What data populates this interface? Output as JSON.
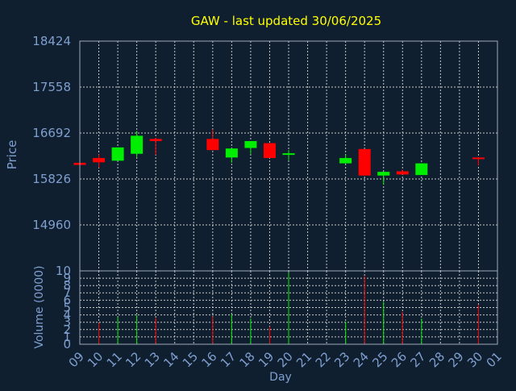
{
  "chart_data": [
    {
      "type": "candlestick",
      "title": "GAW - last updated 30/06/2025",
      "ylabel": "Price",
      "xlabel": "",
      "ylim": [
        14093,
        18424
      ],
      "yticks": [
        14960,
        15826,
        16692,
        17558,
        18424
      ],
      "grid": true,
      "x_ticks": [
        "09",
        "10",
        "11",
        "12",
        "13",
        "14",
        "15",
        "16",
        "17",
        "18",
        "19",
        "20",
        "21",
        "22",
        "23",
        "24",
        "25",
        "26",
        "27",
        "28",
        "29",
        "30",
        "01"
      ],
      "candles": [
        {
          "day": "09",
          "open": 16130,
          "close": 16090,
          "high": 16140,
          "low": 16080
        },
        {
          "day": "10",
          "open": 16220,
          "close": 16140,
          "high": 16290,
          "low": 16040
        },
        {
          "day": "11",
          "open": 16170,
          "close": 16420,
          "high": 16420,
          "low": 16170
        },
        {
          "day": "12",
          "open": 16300,
          "close": 16640,
          "high": 16730,
          "low": 16230
        },
        {
          "day": "13",
          "open": 16580,
          "close": 16540,
          "high": 16600,
          "low": 16280
        },
        {
          "day": "16",
          "open": 16580,
          "close": 16370,
          "high": 16760,
          "low": 16370
        },
        {
          "day": "17",
          "open": 16230,
          "close": 16400,
          "high": 16400,
          "low": 16130
        },
        {
          "day": "18",
          "open": 16410,
          "close": 16540,
          "high": 16540,
          "low": 16300
        },
        {
          "day": "19",
          "open": 16500,
          "close": 16220,
          "high": 16500,
          "low": 16220
        },
        {
          "day": "20",
          "open": 16290,
          "close": 16310,
          "high": 16370,
          "low": 16180
        },
        {
          "day": "23",
          "open": 16120,
          "close": 16220,
          "high": 16280,
          "low": 16120
        },
        {
          "day": "24",
          "open": 16390,
          "close": 15890,
          "high": 16390,
          "low": 15890
        },
        {
          "day": "25",
          "open": 15890,
          "close": 15960,
          "high": 15960,
          "low": 15720
        },
        {
          "day": "26",
          "open": 15970,
          "close": 15910,
          "high": 16000,
          "low": 15910
        },
        {
          "day": "27",
          "open": 15900,
          "close": 16120,
          "high": 16120,
          "low": 15900
        },
        {
          "day": "30",
          "open": 16230,
          "close": 16200,
          "high": 16240,
          "low": 16080
        }
      ],
      "colors": {
        "up": "#00ee00",
        "down": "#ff0000"
      }
    },
    {
      "type": "bar",
      "ylabel": "Volume (0000)",
      "xlabel": "Day",
      "ylim": [
        0,
        10
      ],
      "yticks": [
        0,
        1,
        2,
        3,
        4,
        5,
        6,
        7,
        8,
        9,
        10
      ],
      "x_ticks": [
        "09",
        "10",
        "11",
        "12",
        "13",
        "14",
        "15",
        "16",
        "17",
        "18",
        "19",
        "20",
        "21",
        "22",
        "23",
        "24",
        "25",
        "26",
        "27",
        "28",
        "29",
        "30",
        "01"
      ],
      "bars": [
        {
          "day": "10",
          "value": 2.9,
          "color": "#ff0000"
        },
        {
          "day": "11",
          "value": 3.7,
          "color": "#00ee00"
        },
        {
          "day": "12",
          "value": 4.0,
          "color": "#00ee00"
        },
        {
          "day": "13",
          "value": 3.6,
          "color": "#ff0000"
        },
        {
          "day": "16",
          "value": 3.8,
          "color": "#ff0000"
        },
        {
          "day": "17",
          "value": 4.1,
          "color": "#00ee00"
        },
        {
          "day": "18",
          "value": 3.5,
          "color": "#00ee00"
        },
        {
          "day": "19",
          "value": 2.4,
          "color": "#ff0000"
        },
        {
          "day": "20",
          "value": 9.8,
          "color": "#00ee00"
        },
        {
          "day": "23",
          "value": 3.1,
          "color": "#00ee00"
        },
        {
          "day": "24",
          "value": 9.3,
          "color": "#ff0000"
        },
        {
          "day": "25",
          "value": 5.8,
          "color": "#00ee00"
        },
        {
          "day": "26",
          "value": 4.4,
          "color": "#ff0000"
        },
        {
          "day": "27",
          "value": 3.5,
          "color": "#00ee00"
        },
        {
          "day": "30",
          "value": 5.4,
          "color": "#ff0000"
        }
      ]
    }
  ],
  "colors": {
    "background": "#0f1f30",
    "title": "#ffff00",
    "axis_text": "#7f9fcf",
    "grid": "#c8c8c8",
    "frame": "#a0a8b8"
  }
}
